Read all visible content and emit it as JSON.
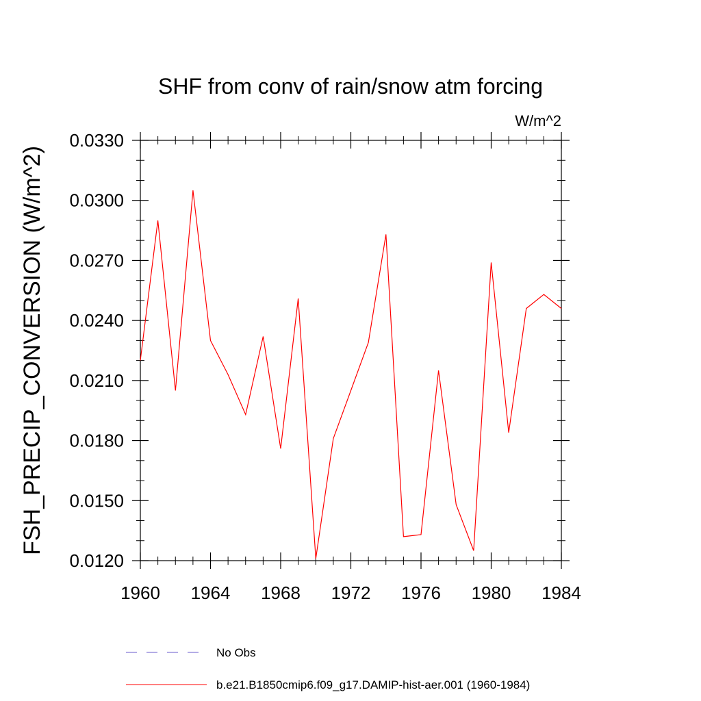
{
  "chart_data": {
    "type": "line",
    "title": "SHF from conv of rain/snow atm forcing",
    "units_label": "W/m^2",
    "xlabel": "",
    "ylabel": "FSH_PRECIP_CONVERSION  (W/m^2)",
    "xlim": [
      1960,
      1984
    ],
    "ylim": [
      0.012,
      0.033
    ],
    "x_ticks": [
      1960,
      1964,
      1968,
      1972,
      1976,
      1980,
      1984
    ],
    "x_tick_labels": [
      "1960",
      "1964",
      "1968",
      "1972",
      "1976",
      "1980",
      "1984"
    ],
    "y_ticks": [
      0.012,
      0.015,
      0.018,
      0.021,
      0.024,
      0.027,
      0.03,
      0.033
    ],
    "y_tick_labels": [
      "0.0120",
      "0.0150",
      "0.0180",
      "0.0210",
      "0.0240",
      "0.0270",
      "0.0300",
      "0.0330"
    ],
    "grid": false,
    "legend_position": "bottom",
    "series": [
      {
        "name": "No Obs",
        "color": "#6a5acd",
        "dash": "dashed",
        "x": [],
        "y": []
      },
      {
        "name": "b.e21.B1850cmip6.f09_g17.DAMIP-hist-aer.001 (1960-1984)",
        "color": "#ff0000",
        "dash": "solid",
        "x": [
          1960,
          1961,
          1962,
          1963,
          1964,
          1965,
          1966,
          1967,
          1968,
          1969,
          1970,
          1971,
          1972,
          1973,
          1974,
          1975,
          1976,
          1977,
          1978,
          1979,
          1980,
          1981,
          1982,
          1983,
          1984
        ],
        "y": [
          0.022,
          0.029,
          0.0205,
          0.0305,
          0.023,
          0.0213,
          0.0193,
          0.0232,
          0.0176,
          0.0251,
          0.0121,
          0.0181,
          0.0205,
          0.0229,
          0.0283,
          0.0132,
          0.0133,
          0.0215,
          0.0148,
          0.0125,
          0.0269,
          0.0184,
          0.0246,
          0.0253,
          0.0246
        ]
      }
    ]
  }
}
